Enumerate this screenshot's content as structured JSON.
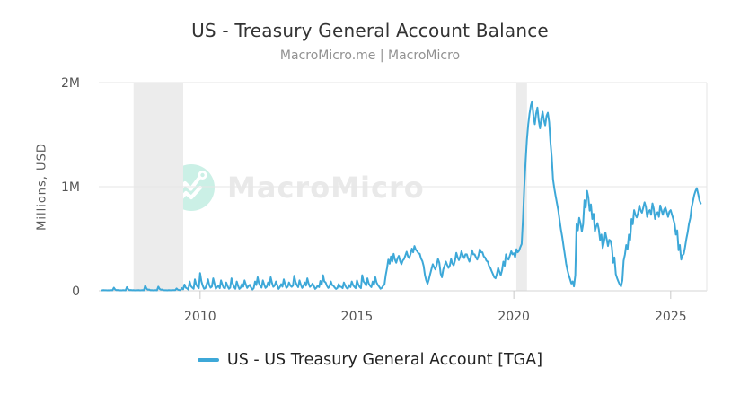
{
  "header": {
    "title": "US - Treasury General Account Balance",
    "subtitle": "MacroMicro.me | MacroMicro"
  },
  "watermark": {
    "brand": "MacroMicro",
    "logo": "macromicro-line-chart-logo"
  },
  "legend": {
    "label": "US - US Treasury General Account [TGA]"
  },
  "colors": {
    "line": "#3da8d8",
    "band": "#ececec",
    "grid": "#e6e6e6",
    "baseline": "#d4d4d4",
    "tick": "#c9c9c9",
    "tick_text": "#555555",
    "watermark_mint": "#cbf0e6",
    "watermark_text": "#e9e9e9"
  },
  "chart_data": {
    "type": "line",
    "title": "US - Treasury General Account Balance",
    "subtitle": "MacroMicro.me | MacroMicro",
    "xlabel": "",
    "ylabel": "Millions, USD",
    "xlim": [
      2006.77,
      2026.15
    ],
    "ylim": [
      0,
      2
    ],
    "grid": "horizontal",
    "legend_position": "bottom",
    "x_ticks": [
      {
        "value": 2010,
        "label": "2010"
      },
      {
        "value": 2015,
        "label": "2015"
      },
      {
        "value": 2020,
        "label": "2020"
      },
      {
        "value": 2025,
        "label": "2025"
      }
    ],
    "y_ticks": [
      {
        "value": 0,
        "label": "0"
      },
      {
        "value": 1,
        "label": "1M"
      },
      {
        "value": 2,
        "label": "2M"
      }
    ],
    "recession_bands": [
      [
        2007.88,
        2009.46
      ],
      [
        2020.08,
        2020.42
      ]
    ],
    "series": [
      {
        "name": "US - US Treasury General Account [TGA]",
        "color": "#3da8d8",
        "unit": "Millions, USD",
        "start": 2006.875,
        "step_years": 0.0416667,
        "values": [
          0.004,
          0.006,
          0.005,
          0.005,
          0.004,
          0.005,
          0.004,
          0.006,
          0.005,
          0.03,
          0.012,
          0.006,
          0.008,
          0.004,
          0.005,
          0.004,
          0.006,
          0.005,
          0.004,
          0.035,
          0.015,
          0.006,
          0.008,
          0.005,
          0.006,
          0.004,
          0.005,
          0.005,
          0.006,
          0.004,
          0.005,
          0.006,
          0.004,
          0.05,
          0.02,
          0.01,
          0.012,
          0.005,
          0.006,
          0.004,
          0.005,
          0.006,
          0.004,
          0.04,
          0.018,
          0.01,
          0.012,
          0.006,
          0.005,
          0.005,
          0.004,
          0.006,
          0.005,
          0.005,
          0.006,
          0.007,
          0.006,
          0.022,
          0.01,
          0.008,
          0.006,
          0.025,
          0.015,
          0.06,
          0.03,
          0.022,
          0.012,
          0.09,
          0.045,
          0.03,
          0.02,
          0.11,
          0.06,
          0.04,
          0.025,
          0.17,
          0.09,
          0.05,
          0.02,
          0.025,
          0.06,
          0.11,
          0.055,
          0.03,
          0.04,
          0.12,
          0.07,
          0.02,
          0.035,
          0.05,
          0.025,
          0.1,
          0.06,
          0.03,
          0.022,
          0.08,
          0.045,
          0.02,
          0.03,
          0.12,
          0.07,
          0.035,
          0.02,
          0.09,
          0.05,
          0.018,
          0.03,
          0.065,
          0.04,
          0.1,
          0.06,
          0.028,
          0.045,
          0.058,
          0.03,
          0.012,
          0.025,
          0.09,
          0.055,
          0.13,
          0.075,
          0.048,
          0.03,
          0.1,
          0.06,
          0.028,
          0.04,
          0.08,
          0.05,
          0.13,
          0.075,
          0.038,
          0.05,
          0.09,
          0.055,
          0.018,
          0.035,
          0.065,
          0.04,
          0.11,
          0.065,
          0.028,
          0.04,
          0.08,
          0.05,
          0.038,
          0.05,
          0.145,
          0.085,
          0.055,
          0.035,
          0.1,
          0.06,
          0.028,
          0.045,
          0.08,
          0.05,
          0.12,
          0.07,
          0.038,
          0.05,
          0.07,
          0.045,
          0.018,
          0.03,
          0.052,
          0.035,
          0.095,
          0.06,
          0.15,
          0.09,
          0.08,
          0.048,
          0.028,
          0.04,
          0.09,
          0.055,
          0.048,
          0.03,
          0.018,
          0.028,
          0.065,
          0.04,
          0.038,
          0.025,
          0.08,
          0.05,
          0.028,
          0.02,
          0.055,
          0.035,
          0.09,
          0.055,
          0.038,
          0.025,
          0.1,
          0.06,
          0.038,
          0.025,
          0.15,
          0.09,
          0.075,
          0.05,
          0.12,
          0.07,
          0.048,
          0.035,
          0.09,
          0.055,
          0.13,
          0.08,
          0.055,
          0.04,
          0.02,
          0.028,
          0.048,
          0.06,
          0.15,
          0.22,
          0.3,
          0.26,
          0.33,
          0.28,
          0.355,
          0.3,
          0.27,
          0.31,
          0.335,
          0.285,
          0.255,
          0.29,
          0.305,
          0.34,
          0.375,
          0.33,
          0.315,
          0.355,
          0.405,
          0.37,
          0.43,
          0.395,
          0.38,
          0.36,
          0.355,
          0.31,
          0.285,
          0.24,
          0.15,
          0.1,
          0.068,
          0.11,
          0.16,
          0.21,
          0.255,
          0.225,
          0.205,
          0.25,
          0.305,
          0.27,
          0.165,
          0.13,
          0.205,
          0.24,
          0.28,
          0.25,
          0.22,
          0.24,
          0.305,
          0.26,
          0.245,
          0.29,
          0.365,
          0.32,
          0.295,
          0.33,
          0.38,
          0.34,
          0.315,
          0.35,
          0.35,
          0.31,
          0.28,
          0.32,
          0.39,
          0.35,
          0.35,
          0.32,
          0.3,
          0.34,
          0.4,
          0.37,
          0.37,
          0.33,
          0.32,
          0.29,
          0.28,
          0.24,
          0.22,
          0.19,
          0.16,
          0.13,
          0.12,
          0.16,
          0.22,
          0.18,
          0.15,
          0.2,
          0.28,
          0.24,
          0.35,
          0.31,
          0.3,
          0.34,
          0.38,
          0.35,
          0.36,
          0.32,
          0.4,
          0.37,
          0.385,
          0.42,
          0.45,
          0.7,
          1.0,
          1.25,
          1.45,
          1.6,
          1.7,
          1.78,
          1.82,
          1.68,
          1.6,
          1.7,
          1.76,
          1.64,
          1.56,
          1.65,
          1.72,
          1.64,
          1.59,
          1.68,
          1.71,
          1.62,
          1.43,
          1.28,
          1.07,
          0.98,
          0.91,
          0.84,
          0.77,
          0.68,
          0.59,
          0.52,
          0.43,
          0.35,
          0.26,
          0.2,
          0.15,
          0.11,
          0.07,
          0.09,
          0.042,
          0.15,
          0.64,
          0.58,
          0.7,
          0.65,
          0.57,
          0.64,
          0.87,
          0.8,
          0.96,
          0.9,
          0.77,
          0.83,
          0.69,
          0.74,
          0.57,
          0.62,
          0.65,
          0.59,
          0.49,
          0.54,
          0.41,
          0.47,
          0.56,
          0.5,
          0.43,
          0.49,
          0.48,
          0.42,
          0.27,
          0.32,
          0.16,
          0.12,
          0.09,
          0.06,
          0.042,
          0.1,
          0.29,
          0.35,
          0.44,
          0.4,
          0.54,
          0.49,
          0.69,
          0.64,
          0.775,
          0.73,
          0.705,
          0.745,
          0.82,
          0.77,
          0.75,
          0.8,
          0.85,
          0.805,
          0.71,
          0.76,
          0.775,
          0.73,
          0.84,
          0.79,
          0.69,
          0.74,
          0.755,
          0.71,
          0.82,
          0.775,
          0.73,
          0.78,
          0.8,
          0.755,
          0.71,
          0.76,
          0.775,
          0.73,
          0.69,
          0.64,
          0.54,
          0.58,
          0.39,
          0.44,
          0.3,
          0.34,
          0.355,
          0.42,
          0.5,
          0.56,
          0.645,
          0.7,
          0.8,
          0.86,
          0.92,
          0.96,
          0.985,
          0.93,
          0.87,
          0.84
        ]
      }
    ]
  }
}
